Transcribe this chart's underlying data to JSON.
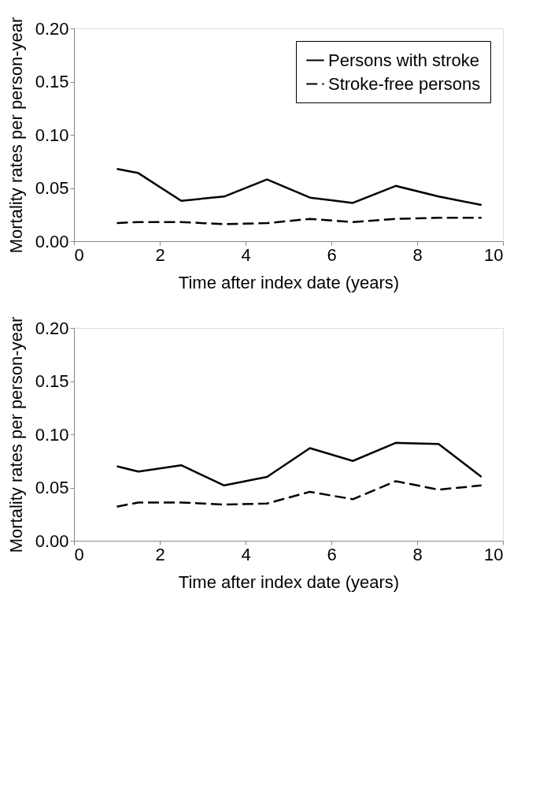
{
  "chart_data": [
    {
      "type": "line",
      "xlabel": "Time after index date (years)",
      "ylabel": "Mortality rates per person-year",
      "x": [
        1,
        1.5,
        2.5,
        3.5,
        4.5,
        5.5,
        6.5,
        7.5,
        8.5,
        9.5
      ],
      "xlim": [
        0,
        10
      ],
      "xticks": [
        0,
        2,
        4,
        6,
        8,
        10
      ],
      "ylim": [
        0,
        0.2
      ],
      "yticks": [
        {
          "value": 0,
          "label": "0.00"
        },
        {
          "value": 0.05,
          "label": "0.05"
        },
        {
          "value": 0.1,
          "label": "0.10"
        },
        {
          "value": 0.15,
          "label": "0.15"
        },
        {
          "value": 0.2,
          "label": "0.20"
        }
      ],
      "legend": "top right",
      "marker": "none",
      "series": [
        {
          "name": "Persons with stroke",
          "color": "#000000",
          "line_style": "solid",
          "values": [
            0.068,
            0.064,
            0.038,
            0.042,
            0.058,
            0.041,
            0.036,
            0.052,
            0.042,
            0.034
          ]
        },
        {
          "name": "Stroke-free persons",
          "color": "#000000",
          "line_style": "dashed",
          "values": [
            0.017,
            0.018,
            0.018,
            0.016,
            0.017,
            0.021,
            0.018,
            0.021,
            0.022,
            0.022
          ]
        }
      ]
    },
    {
      "type": "line",
      "xlabel": "Time after index date (years)",
      "ylabel": "Mortality rates per person-year",
      "x": [
        1,
        1.5,
        2.5,
        3.5,
        4.5,
        5.5,
        6.5,
        7.5,
        8.5,
        9.5
      ],
      "xlim": [
        0,
        10
      ],
      "xticks": [
        0,
        2,
        4,
        6,
        8,
        10
      ],
      "ylim": [
        0,
        0.2
      ],
      "yticks": [
        {
          "value": 0,
          "label": "0.00"
        },
        {
          "value": 0.05,
          "label": "0.05"
        },
        {
          "value": 0.1,
          "label": "0.10"
        },
        {
          "value": 0.15,
          "label": "0.15"
        },
        {
          "value": 0.2,
          "label": "0.20"
        }
      ],
      "legend": "top right",
      "marker": "none",
      "series": [
        {
          "name": "Persons with stroke",
          "color": "#000000",
          "line_style": "solid",
          "values": [
            0.07,
            0.065,
            0.071,
            0.052,
            0.06,
            0.087,
            0.075,
            0.092,
            0.091,
            0.06
          ]
        },
        {
          "name": "Stroke-free persons",
          "color": "#000000",
          "line_style": "dashed",
          "values": [
            0.032,
            0.036,
            0.036,
            0.034,
            0.035,
            0.046,
            0.039,
            0.056,
            0.048,
            0.052
          ]
        }
      ]
    }
  ]
}
